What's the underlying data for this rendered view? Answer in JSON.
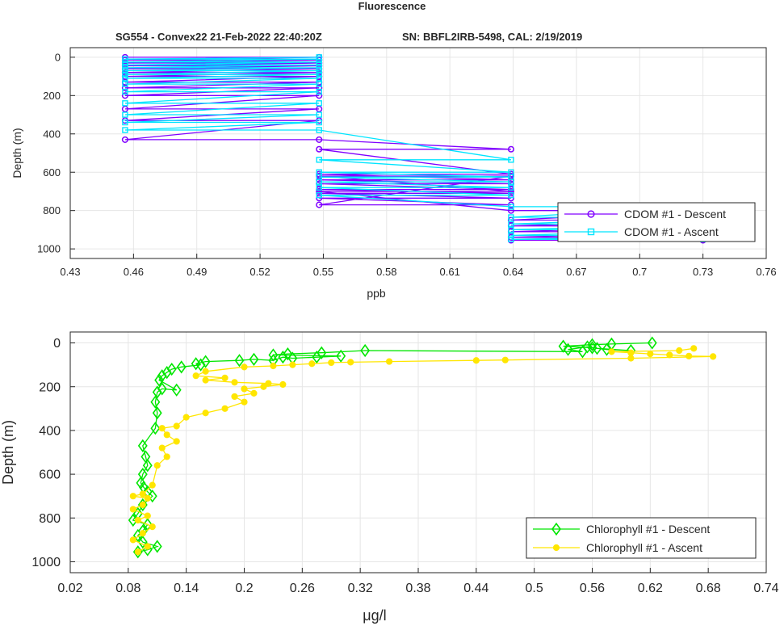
{
  "figure": {
    "title": "Fluorescence",
    "subtitle_left": "SG554 - Convex22 21-Feb-2022 22:40:20Z",
    "subtitle_right": "SN: BBFL2IRB-5498, CAL: 2/19/2019"
  },
  "chart_data": [
    {
      "type": "line",
      "xlabel": "ppb",
      "ylabel": "Depth (m)",
      "xlim": [
        0.43,
        0.76
      ],
      "ylim": [
        1050,
        -50
      ],
      "y_reversed": true,
      "xticks": [
        "0.43",
        "0.46",
        "0.49",
        "0.52",
        "0.55",
        "0.58",
        "0.61",
        "0.64",
        "0.67",
        "0.7",
        "0.73",
        "0.76"
      ],
      "yticks": [
        "0",
        "200",
        "400",
        "600",
        "800",
        "1000"
      ],
      "grid": true,
      "legend_position": "right",
      "series": [
        {
          "name": "CDOM #1 - Descent",
          "color": "#8000ff",
          "marker": "circle",
          "x": [
            0.456,
            0.548,
            0.456,
            0.548,
            0.456,
            0.548,
            0.456,
            0.548,
            0.456,
            0.548,
            0.456,
            0.548,
            0.456,
            0.548,
            0.456,
            0.548,
            0.456,
            0.548,
            0.456,
            0.548,
            0.456,
            0.548,
            0.456,
            0.548,
            0.456,
            0.548,
            0.639,
            0.548,
            0.639,
            0.548,
            0.639,
            0.548,
            0.639,
            0.548,
            0.639,
            0.548,
            0.639,
            0.548,
            0.639,
            0.548,
            0.639,
            0.548,
            0.639,
            0.548,
            0.639,
            0.548,
            0.639,
            0.73,
            0.639,
            0.73,
            0.639,
            0.73,
            0.639,
            0.73,
            0.639,
            0.73,
            0.639,
            0.73
          ],
          "y": [
            0,
            0,
            15,
            15,
            30,
            30,
            45,
            45,
            60,
            60,
            80,
            80,
            100,
            100,
            130,
            130,
            160,
            160,
            200,
            200,
            270,
            270,
            330,
            330,
            430,
            430,
            480,
            480,
            610,
            610,
            640,
            640,
            660,
            660,
            690,
            690,
            710,
            710,
            735,
            735,
            770,
            770,
            620,
            620,
            700,
            700,
            800,
            800,
            850,
            850,
            880,
            880,
            910,
            910,
            940,
            940,
            955,
            955
          ]
        },
        {
          "name": "CDOM #1 - Ascent",
          "color": "#00e5ff",
          "marker": "square",
          "x": [
            0.73,
            0.639,
            0.73,
            0.639,
            0.73,
            0.639,
            0.73,
            0.639,
            0.73,
            0.639,
            0.73,
            0.639,
            0.548,
            0.639,
            0.548,
            0.639,
            0.548,
            0.639,
            0.548,
            0.639,
            0.548,
            0.639,
            0.548,
            0.639,
            0.548,
            0.456,
            0.548,
            0.456,
            0.548,
            0.456,
            0.548,
            0.456,
            0.548,
            0.456,
            0.548,
            0.456,
            0.548,
            0.456,
            0.548,
            0.456,
            0.548,
            0.456,
            0.548,
            0.456,
            0.548,
            0.456,
            0.548,
            0.456,
            0.548,
            0.456,
            0.548
          ],
          "y": [
            950,
            950,
            930,
            930,
            900,
            900,
            870,
            870,
            835,
            835,
            780,
            780,
            720,
            720,
            680,
            680,
            650,
            650,
            625,
            625,
            600,
            600,
            535,
            535,
            380,
            380,
            340,
            340,
            300,
            300,
            240,
            240,
            180,
            180,
            140,
            140,
            110,
            110,
            90,
            90,
            70,
            70,
            55,
            55,
            40,
            40,
            25,
            25,
            10,
            10,
            0
          ]
        }
      ]
    },
    {
      "type": "line",
      "xlabel": "μg/l",
      "ylabel": "Depth (m)",
      "xlim": [
        0.02,
        0.74
      ],
      "ylim": [
        1050,
        -50
      ],
      "y_reversed": true,
      "xticks": [
        "0.02",
        "0.08",
        "0.14",
        "0.2",
        "0.26",
        "0.32",
        "0.38",
        "0.44",
        "0.5",
        "0.56",
        "0.62",
        "0.68",
        "0.74"
      ],
      "yticks": [
        "0",
        "200",
        "400",
        "600",
        "800",
        "1000"
      ],
      "grid": true,
      "legend_position": "bottom-right",
      "series": [
        {
          "name": "Chlorophyll #1 - Descent",
          "color": "#00e600",
          "marker": "diamond",
          "x": [
            0.622,
            0.58,
            0.56,
            0.53,
            0.56,
            0.575,
            0.6,
            0.565,
            0.555,
            0.535,
            0.55,
            0.325,
            0.28,
            0.245,
            0.23,
            0.3,
            0.275,
            0.25,
            0.24,
            0.23,
            0.21,
            0.195,
            0.16,
            0.15,
            0.155,
            0.135,
            0.125,
            0.12,
            0.115,
            0.112,
            0.13,
            0.115,
            0.11,
            0.108,
            0.11,
            0.108,
            0.095,
            0.098,
            0.1,
            0.095,
            0.093,
            0.096,
            0.1,
            0.105,
            0.095,
            0.09,
            0.085,
            0.1,
            0.095,
            0.09,
            0.095,
            0.11,
            0.1,
            0.09
          ],
          "y": [
            0,
            5,
            8,
            15,
            22,
            30,
            35,
            25,
            18,
            30,
            40,
            35,
            45,
            50,
            55,
            60,
            65,
            70,
            65,
            80,
            75,
            80,
            85,
            95,
            100,
            110,
            120,
            135,
            150,
            170,
            215,
            210,
            225,
            270,
            320,
            390,
            470,
            520,
            560,
            600,
            640,
            660,
            680,
            700,
            740,
            780,
            810,
            830,
            860,
            880,
            910,
            930,
            945,
            955
          ]
        },
        {
          "name": "Chlorophyll #1 - Ascent",
          "color": "#ffe600",
          "marker": "circle",
          "x": [
            0.09,
            0.1,
            0.085,
            0.095,
            0.105,
            0.09,
            0.1,
            0.085,
            0.095,
            0.1,
            0.085,
            0.095,
            0.105,
            0.11,
            0.12,
            0.115,
            0.13,
            0.12,
            0.115,
            0.13,
            0.14,
            0.16,
            0.18,
            0.2,
            0.19,
            0.21,
            0.2,
            0.22,
            0.24,
            0.225,
            0.19,
            0.16,
            0.18,
            0.15,
            0.16,
            0.2,
            0.23,
            0.25,
            0.27,
            0.29,
            0.31,
            0.35,
            0.44,
            0.47,
            0.6,
            0.685,
            0.66,
            0.64,
            0.62,
            0.6,
            0.58,
            0.65,
            0.665
          ],
          "y": [
            955,
            930,
            900,
            870,
            840,
            810,
            790,
            760,
            740,
            710,
            700,
            690,
            650,
            560,
            520,
            480,
            450,
            420,
            390,
            380,
            340,
            320,
            300,
            270,
            245,
            230,
            210,
            200,
            190,
            185,
            180,
            170,
            160,
            150,
            130,
            110,
            105,
            100,
            95,
            90,
            88,
            85,
            80,
            78,
            70,
            62,
            60,
            55,
            50,
            45,
            40,
            35,
            25
          ]
        }
      ]
    }
  ]
}
